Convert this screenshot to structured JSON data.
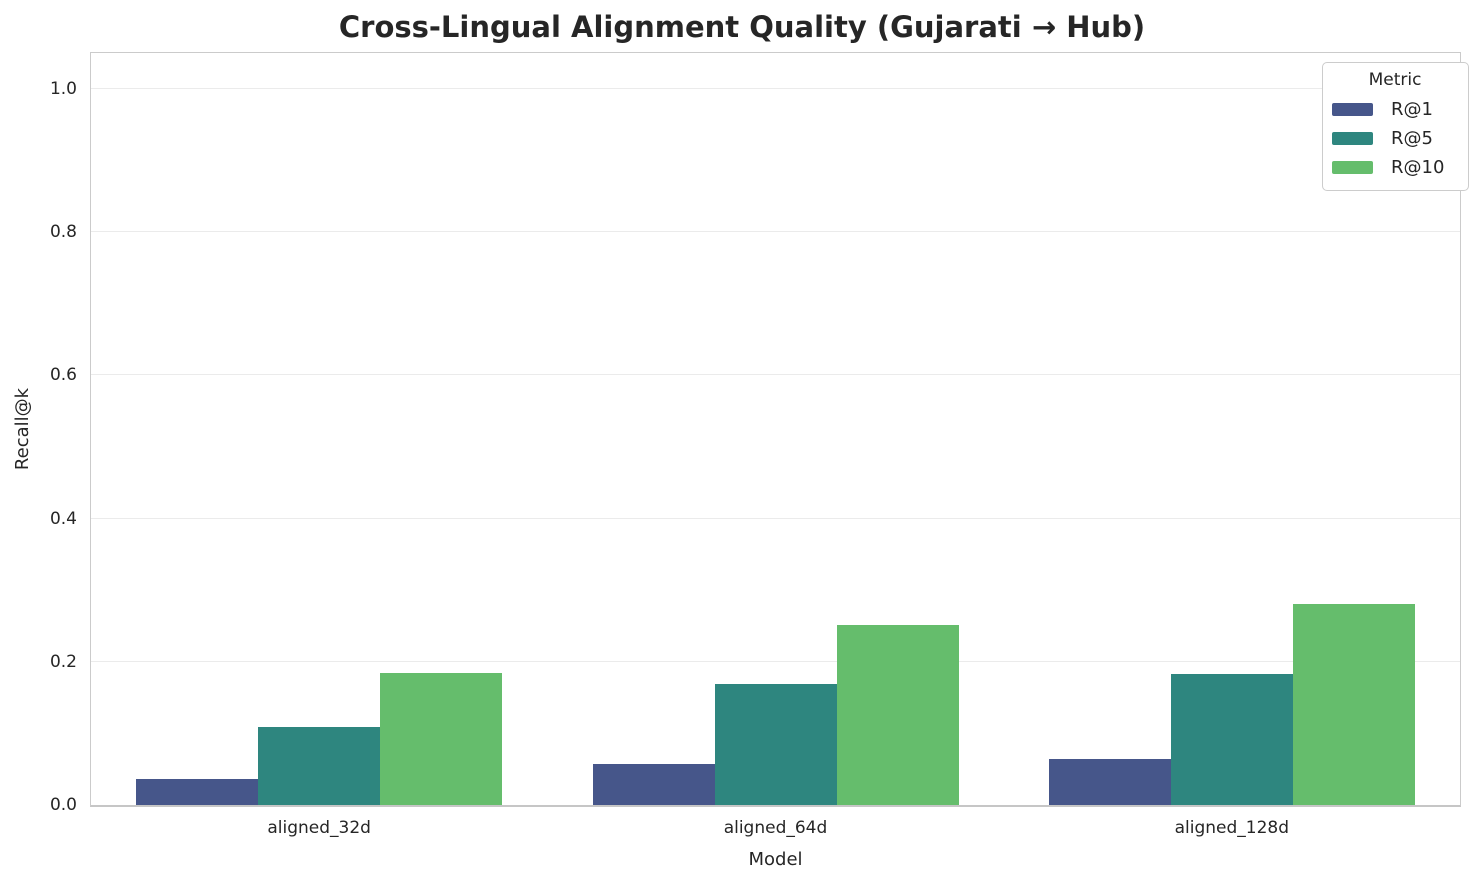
{
  "figure": {
    "title": "Cross-Lingual Alignment Quality (Gujarati → Hub)"
  },
  "chart_data": {
    "type": "bar",
    "title": "Cross-Lingual Alignment Quality (Gujarati → Hub)",
    "xlabel": "Model",
    "ylabel": "Recall@k",
    "categories": [
      "aligned_32d",
      "aligned_64d",
      "aligned_128d"
    ],
    "series": [
      {
        "name": "R@1",
        "color": "#46568a",
        "values": [
          0.036,
          0.057,
          0.064
        ]
      },
      {
        "name": "R@5",
        "color": "#2e867f",
        "values": [
          0.109,
          0.169,
          0.183
        ]
      },
      {
        "name": "R@10",
        "color": "#65bd6c",
        "values": [
          0.185,
          0.252,
          0.28
        ]
      }
    ],
    "ylim": [
      0,
      1.05
    ],
    "yticks": [
      0,
      0.2,
      0.4,
      0.6,
      0.8,
      1.0
    ],
    "ytick_labels": [
      "0.0",
      "0.2",
      "0.4",
      "0.6",
      "0.8",
      "1.0"
    ],
    "legend": {
      "title": "Metric",
      "position": "upper right"
    },
    "grid": "horizontal",
    "styles": {
      "text_color": "#262626",
      "grid_color": "#ebebeb",
      "spine_color": "#cbcbcb",
      "background": "#ffffff"
    }
  }
}
